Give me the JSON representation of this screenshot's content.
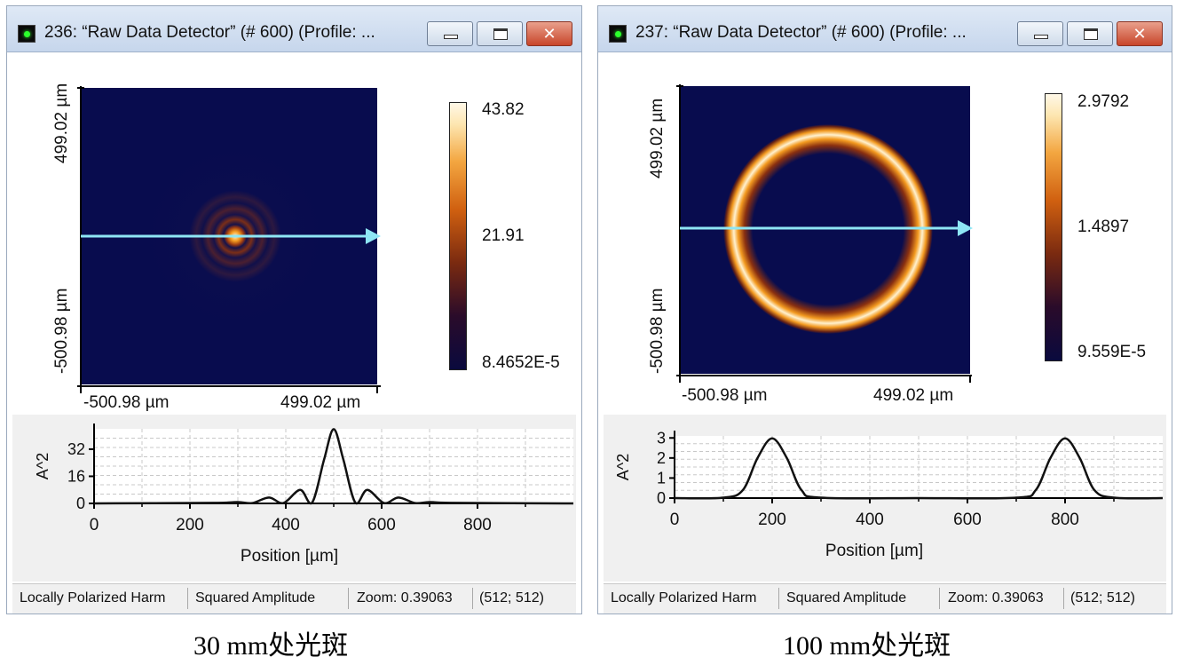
{
  "windows": [
    {
      "title": "236: “Raw Data Detector” (# 600) (Profile: ...",
      "xaxis": {
        "min_label": "-500.98 µm",
        "max_label": "499.02 µm"
      },
      "yaxis": {
        "min_label": "-500.98 µm",
        "max_label": "499.02 µm"
      },
      "colorbar": {
        "max": "43.82",
        "mid": "21.91",
        "min": "8.4652E-5"
      },
      "status": {
        "mode": "Locally Polarized Harm",
        "quantity": "Squared Amplitude",
        "zoom": "Zoom: 0.39063",
        "size": "(512; 512)"
      },
      "caption": "30 mm处光斑"
    },
    {
      "title": "237: “Raw Data Detector” (# 600) (Profile: ...",
      "xaxis": {
        "min_label": "-500.98 µm",
        "max_label": "499.02 µm"
      },
      "yaxis": {
        "min_label": "-500.98 µm",
        "max_label": "499.02 µm"
      },
      "colorbar": {
        "max": "2.9792",
        "mid": "1.4897",
        "min": "9.559E-5"
      },
      "status": {
        "mode": "Locally Polarized Harm",
        "quantity": "Squared Amplitude",
        "zoom": "Zoom: 0.39063",
        "size": "(512; 512)"
      },
      "caption": "100 mm处光斑"
    }
  ],
  "chart_data": [
    {
      "type": "line",
      "xlabel": "Position [µm]",
      "ylabel": "A^2",
      "xticks": [
        "0",
        "200",
        "400",
        "600",
        "800"
      ],
      "yticks": [
        "0",
        "16",
        "32"
      ],
      "xlim": [
        0,
        1000
      ],
      "ylim": [
        0,
        44
      ],
      "grid": true,
      "x": [
        0,
        250,
        300,
        330,
        365,
        395,
        430,
        455,
        480,
        500,
        520,
        545,
        570,
        605,
        635,
        670,
        700,
        750,
        1000
      ],
      "y": [
        0,
        0.3,
        0.8,
        0.2,
        3.5,
        0.2,
        8,
        0.5,
        26,
        43.8,
        26,
        0.5,
        8,
        0.2,
        3.5,
        0.2,
        0.8,
        0.3,
        0
      ]
    },
    {
      "type": "line",
      "xlabel": "Position [µm]",
      "ylabel": "A^2",
      "xticks": [
        "0",
        "200",
        "400",
        "600",
        "800"
      ],
      "yticks": [
        "0",
        "1",
        "2",
        "3"
      ],
      "xlim": [
        0,
        1000
      ],
      "ylim": [
        0,
        3.1
      ],
      "grid": true,
      "x": [
        0,
        100,
        140,
        170,
        200,
        230,
        260,
        300,
        500,
        700,
        740,
        770,
        800,
        830,
        860,
        900,
        1000
      ],
      "y": [
        0,
        0.02,
        0.4,
        2.0,
        2.98,
        2.0,
        0.4,
        0.02,
        0,
        0.02,
        0.4,
        2.0,
        2.98,
        2.0,
        0.4,
        0.02,
        0
      ]
    }
  ]
}
